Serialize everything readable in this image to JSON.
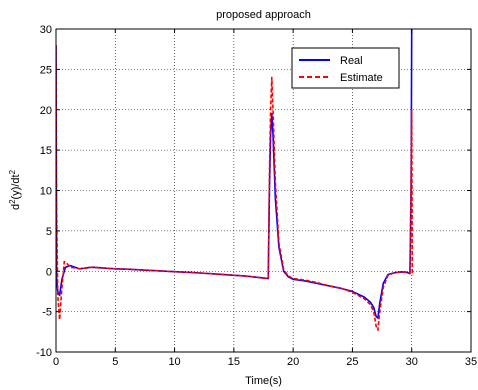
{
  "chart_data": {
    "type": "line",
    "title": "proposed approach",
    "xlabel": "Time(s)",
    "ylabel": "d^2(y)/dt^2",
    "xlim": [
      0,
      35
    ],
    "ylim": [
      -10,
      30
    ],
    "xticks": [
      0,
      5,
      10,
      15,
      20,
      25,
      30,
      35
    ],
    "yticks": [
      -10,
      -5,
      0,
      5,
      10,
      15,
      20,
      25,
      30
    ],
    "grid": true,
    "legend_position": "top-right",
    "series": [
      {
        "name": "Real",
        "color": "#0000ff",
        "dash": "solid",
        "x": [
          0,
          0.05,
          0.15,
          0.3,
          0.5,
          0.8,
          1.2,
          2,
          3,
          4,
          5,
          6,
          8,
          10,
          12,
          14,
          16,
          17.9,
          18.0,
          18.1,
          18.2,
          18.3,
          18.5,
          18.8,
          19.2,
          19.6,
          20.0,
          20.5,
          21,
          22,
          23,
          24,
          25,
          26,
          26.5,
          26.8,
          27.0,
          27.15,
          27.3,
          27.6,
          28,
          28.5,
          29,
          29.5,
          29.85,
          29.95,
          30.0
        ],
        "y": [
          28,
          -1,
          -2.5,
          -3,
          -1,
          0.5,
          0.7,
          0.3,
          0.5,
          0.4,
          0.3,
          0.25,
          0.1,
          -0.05,
          -0.2,
          -0.4,
          -0.6,
          -0.9,
          10,
          17,
          19.5,
          17,
          9,
          3,
          0,
          -0.7,
          -1.0,
          -1.1,
          -1.2,
          -1.5,
          -1.8,
          -2.1,
          -2.5,
          -3.2,
          -3.8,
          -4.5,
          -5.6,
          -5.8,
          -4,
          -1.5,
          -0.4,
          -0.2,
          -0.1,
          -0.1,
          -0.3,
          10,
          30
        ]
      },
      {
        "name": "Estimate",
        "color": "#ff0000",
        "dash": "dashed",
        "x": [
          0,
          0.05,
          0.15,
          0.3,
          0.5,
          0.7,
          0.9,
          1.2,
          2,
          3,
          4,
          5,
          6,
          8,
          10,
          12,
          14,
          16,
          17.9,
          18.0,
          18.1,
          18.2,
          18.3,
          18.5,
          18.8,
          19.2,
          19.6,
          20.0,
          20.5,
          21,
          22,
          23,
          24,
          25,
          26,
          26.5,
          26.8,
          27.0,
          27.15,
          27.3,
          27.6,
          28,
          28.5,
          29,
          29.5,
          29.85,
          29.95,
          30.0,
          30.05
        ],
        "y": [
          28,
          8,
          -3,
          -6,
          -2,
          1.2,
          1.0,
          0.5,
          0.3,
          0.5,
          0.4,
          0.3,
          0.25,
          0.1,
          -0.05,
          -0.2,
          -0.4,
          -0.6,
          -0.9,
          12,
          20,
          24,
          20,
          11,
          3.5,
          0.2,
          -0.6,
          -0.9,
          -1.0,
          -1.1,
          -1.4,
          -1.8,
          -2.1,
          -2.6,
          -3.4,
          -4.1,
          -5,
          -6.8,
          -7.3,
          -5,
          -2,
          -0.5,
          -0.2,
          -0.1,
          -0.1,
          -0.2,
          12,
          20,
          -0.5
        ]
      }
    ]
  }
}
